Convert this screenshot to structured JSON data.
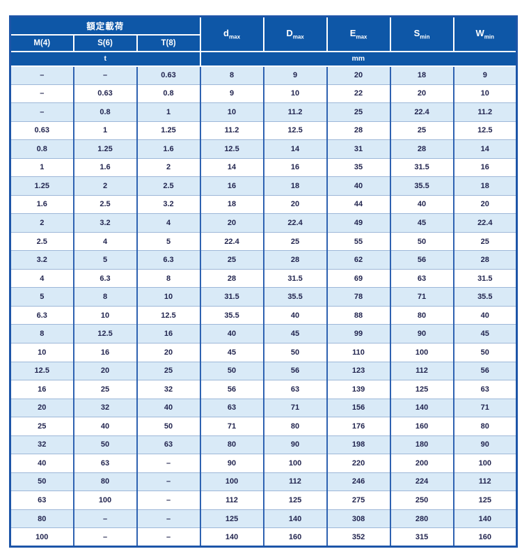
{
  "table": {
    "title_header": "額定載荷",
    "load_cols": [
      "M(4)",
      "S(6)",
      "T(8)"
    ],
    "dim_cols": [
      {
        "base": "d",
        "sub": "max"
      },
      {
        "base": "D",
        "sub": "max"
      },
      {
        "base": "E",
        "sub": "max"
      },
      {
        "base": "S",
        "sub": "min"
      },
      {
        "base": "W",
        "sub": "min"
      }
    ],
    "unit_left": "t",
    "unit_right": "mm",
    "rows": [
      [
        "–",
        "–",
        "0.63",
        "8",
        "9",
        "20",
        "18",
        "9"
      ],
      [
        "–",
        "0.63",
        "0.8",
        "9",
        "10",
        "22",
        "20",
        "10"
      ],
      [
        "–",
        "0.8",
        "1",
        "10",
        "11.2",
        "25",
        "22.4",
        "11.2"
      ],
      [
        "0.63",
        "1",
        "1.25",
        "11.2",
        "12.5",
        "28",
        "25",
        "12.5"
      ],
      [
        "0.8",
        "1.25",
        "1.6",
        "12.5",
        "14",
        "31",
        "28",
        "14"
      ],
      [
        "1",
        "1.6",
        "2",
        "14",
        "16",
        "35",
        "31.5",
        "16"
      ],
      [
        "1.25",
        "2",
        "2.5",
        "16",
        "18",
        "40",
        "35.5",
        "18"
      ],
      [
        "1.6",
        "2.5",
        "3.2",
        "18",
        "20",
        "44",
        "40",
        "20"
      ],
      [
        "2",
        "3.2",
        "4",
        "20",
        "22.4",
        "49",
        "45",
        "22.4"
      ],
      [
        "2.5",
        "4",
        "5",
        "22.4",
        "25",
        "55",
        "50",
        "25"
      ],
      [
        "3.2",
        "5",
        "6.3",
        "25",
        "28",
        "62",
        "56",
        "28"
      ],
      [
        "4",
        "6.3",
        "8",
        "28",
        "31.5",
        "69",
        "63",
        "31.5"
      ],
      [
        "5",
        "8",
        "10",
        "31.5",
        "35.5",
        "78",
        "71",
        "35.5"
      ],
      [
        "6.3",
        "10",
        "12.5",
        "35.5",
        "40",
        "88",
        "80",
        "40"
      ],
      [
        "8",
        "12.5",
        "16",
        "40",
        "45",
        "99",
        "90",
        "45"
      ],
      [
        "10",
        "16",
        "20",
        "45",
        "50",
        "110",
        "100",
        "50"
      ],
      [
        "12.5",
        "20",
        "25",
        "50",
        "56",
        "123",
        "112",
        "56"
      ],
      [
        "16",
        "25",
        "32",
        "56",
        "63",
        "139",
        "125",
        "63"
      ],
      [
        "20",
        "32",
        "40",
        "63",
        "71",
        "156",
        "140",
        "71"
      ],
      [
        "25",
        "40",
        "50",
        "71",
        "80",
        "176",
        "160",
        "80"
      ],
      [
        "32",
        "50",
        "63",
        "80",
        "90",
        "198",
        "180",
        "90"
      ],
      [
        "40",
        "63",
        "–",
        "90",
        "100",
        "220",
        "200",
        "100"
      ],
      [
        "50",
        "80",
        "–",
        "100",
        "112",
        "246",
        "224",
        "112"
      ],
      [
        "63",
        "100",
        "–",
        "112",
        "125",
        "275",
        "250",
        "125"
      ],
      [
        "80",
        "–",
        "–",
        "125",
        "140",
        "308",
        "280",
        "140"
      ],
      [
        "100",
        "–",
        "–",
        "140",
        "160",
        "352",
        "315",
        "160"
      ]
    ],
    "colors": {
      "header_bg": "#0e57a7",
      "header_text": "#ffffff",
      "row_alt_bg": "#d9eaf7",
      "row_bg": "#ffffff",
      "border_outer": "#1d55a8",
      "border_vertical": "#2e62b1",
      "border_horizontal": "#9db7d8",
      "text": "#22254f"
    }
  }
}
